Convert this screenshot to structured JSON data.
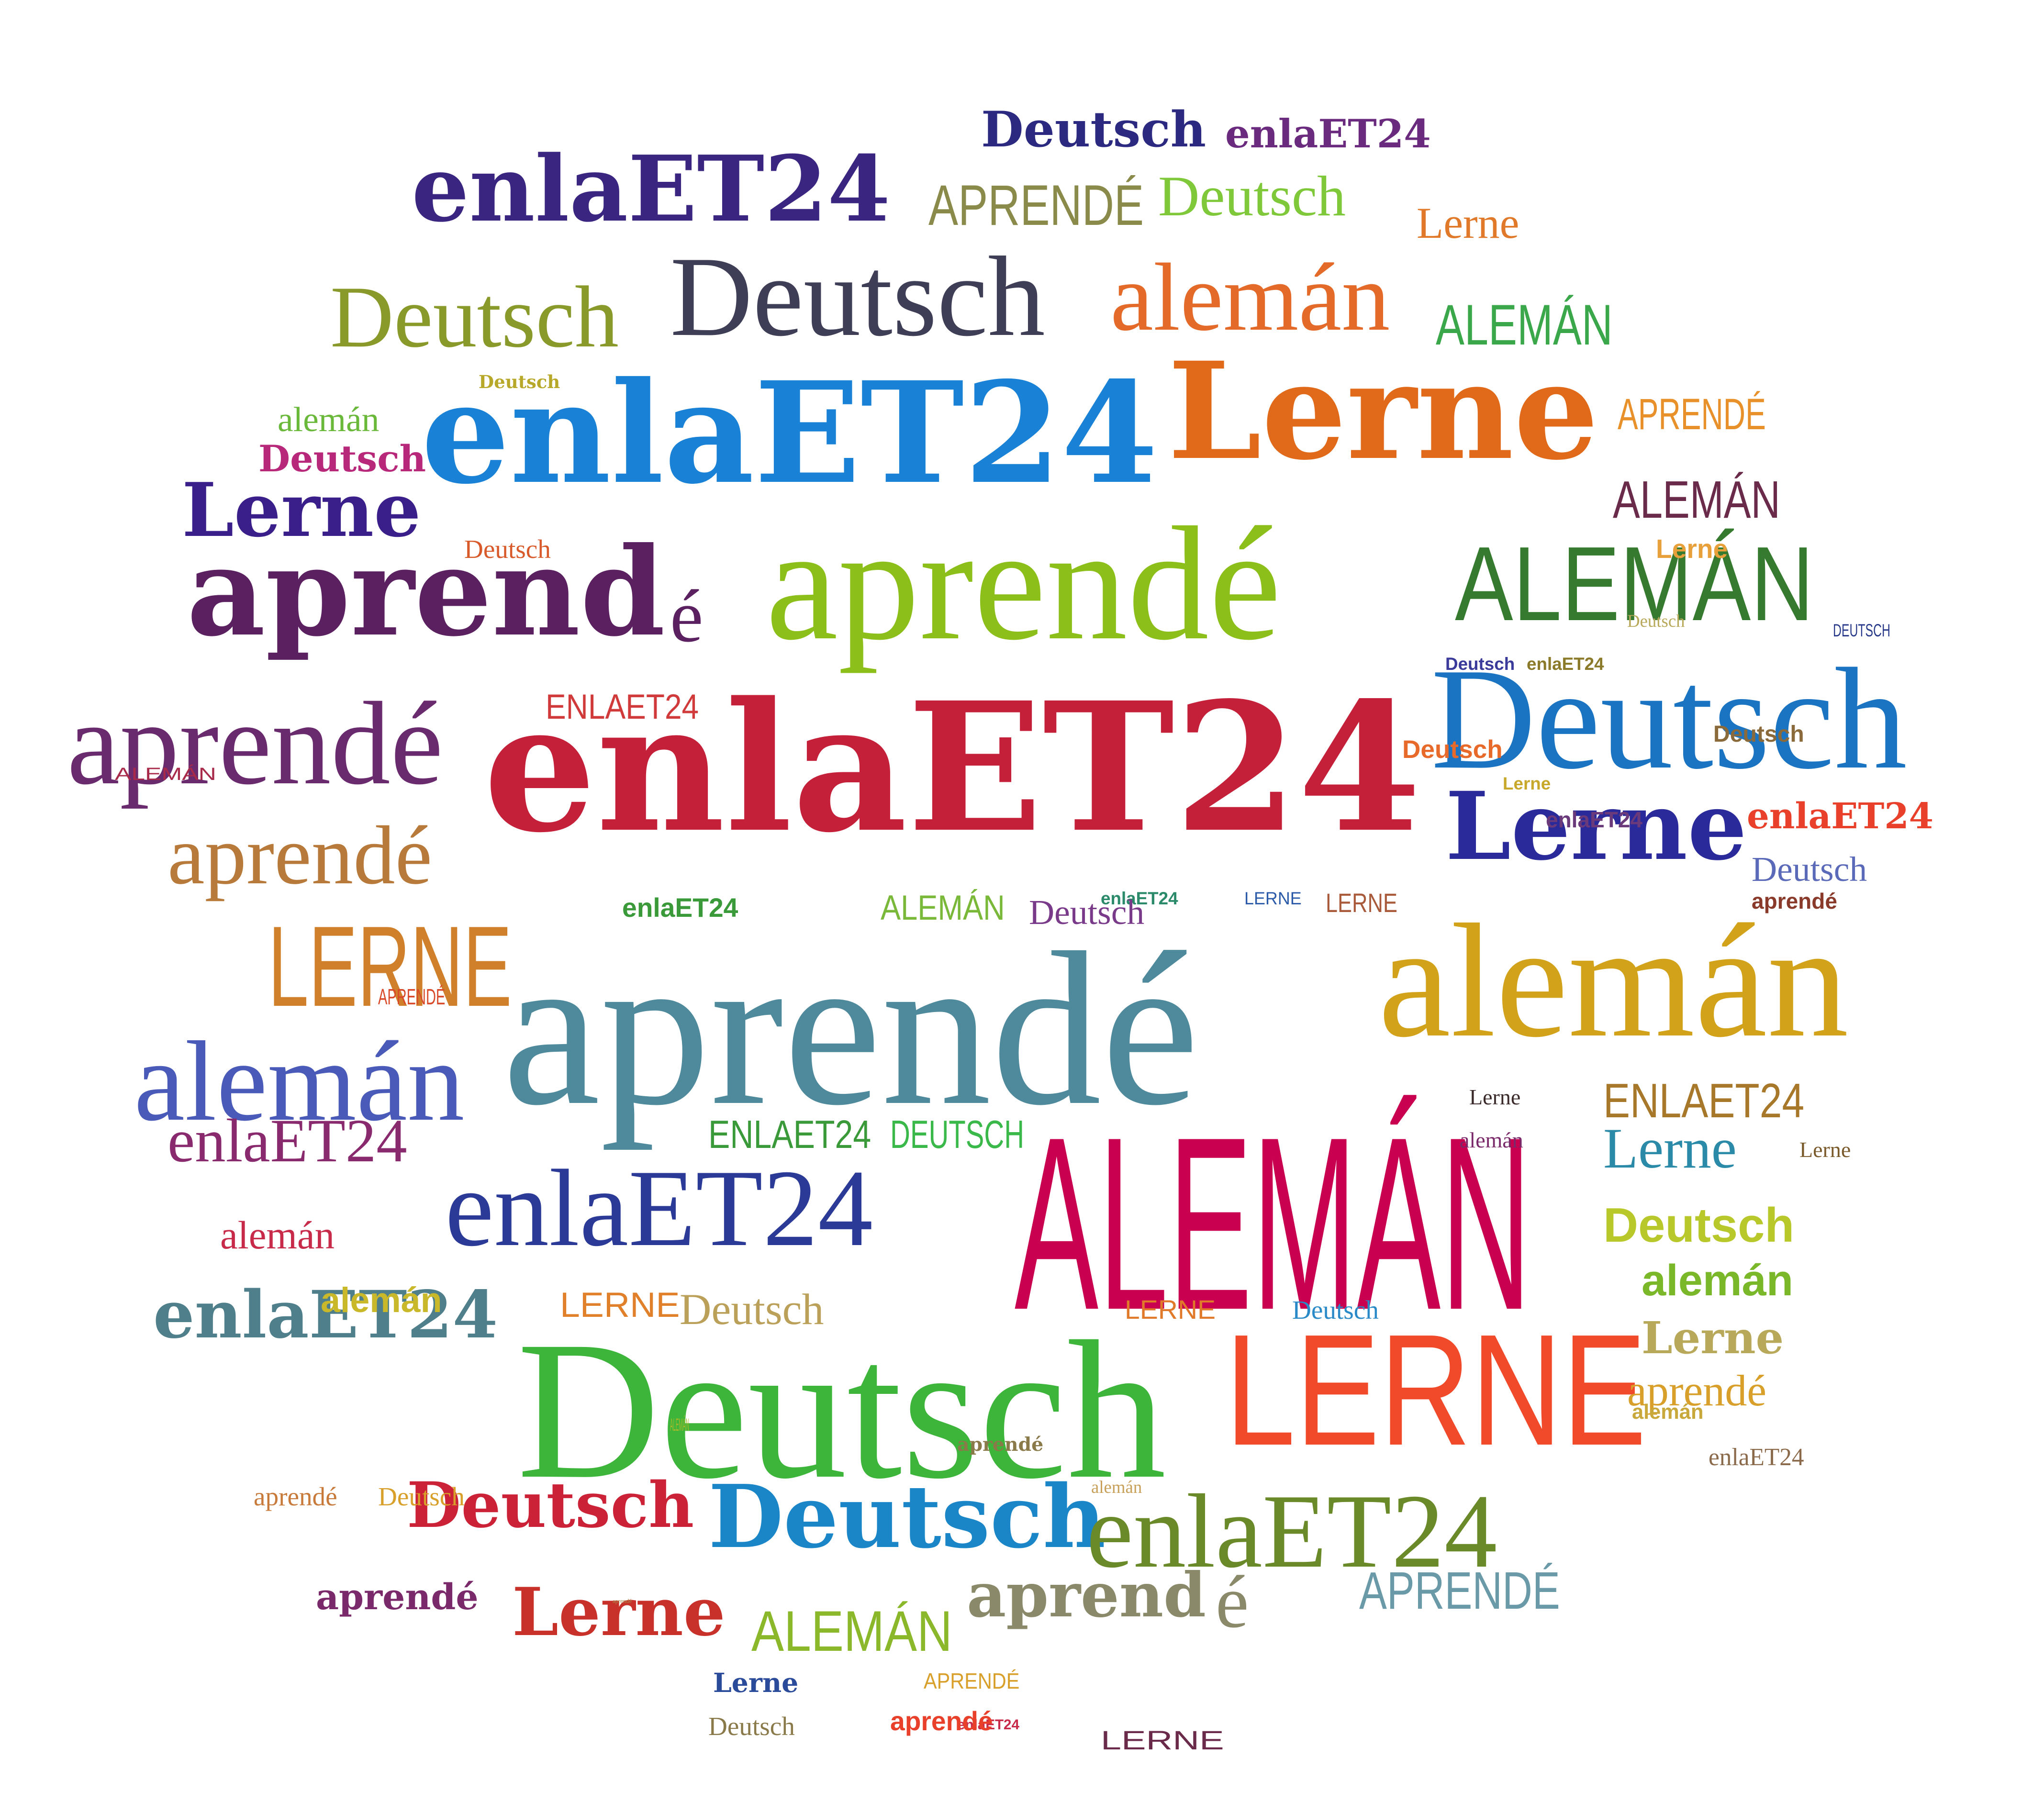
{
  "cloud": {
    "aria_label": "Lerne Deutsch aprendé alemán enlaET24",
    "words": [
      {
        "text": "enlaET24",
        "color": "#c5203a",
        "style": "slab"
      },
      {
        "text": "aprendé",
        "color": "#4f8a9c",
        "style": "serif"
      },
      {
        "text": "ALEMÁN",
        "color": "#c8004f",
        "style": "cond"
      },
      {
        "text": "Deutsch",
        "color": "#3cb53a",
        "style": "serif"
      },
      {
        "text": "aprendé",
        "color": "#8dbf1b",
        "style": "serif"
      },
      {
        "text": "Lerne",
        "color": "#e06a1a",
        "style": "slab"
      },
      {
        "text": "enlaET24",
        "color": "#1a82d6",
        "style": "slab"
      },
      {
        "text": "Deutsch",
        "color": "#3e3e56",
        "style": "serif"
      },
      {
        "text": "LERNE",
        "color": "#f04a2b",
        "style": "cond"
      },
      {
        "text": "alemán",
        "color": "#d1a21a",
        "style": "serif"
      },
      {
        "text": "Deutsch",
        "color": "#1a74c2",
        "style": "serif"
      },
      {
        "text": "aprend",
        "color": "#5a2060",
        "style": "slab"
      },
      {
        "text": "é",
        "color": "#5a2060",
        "style": "serif"
      },
      {
        "text": "enlaET24",
        "color": "#3a2680",
        "style": "slab"
      },
      {
        "text": "enlaET24",
        "color": "#2a3a96",
        "style": "serif"
      },
      {
        "text": "ALEMÁN",
        "color": "#357a2e",
        "style": "cond"
      },
      {
        "text": "alemán",
        "color": "#e46a2a",
        "style": "serif"
      },
      {
        "text": "Deutsch",
        "color": "#8a9a2a",
        "style": "serif"
      },
      {
        "text": "aprendé",
        "color": "#6a2a6e",
        "style": "serif"
      },
      {
        "text": "Lerne",
        "color": "#3a1f8a",
        "style": "slab"
      },
      {
        "text": "Lerne",
        "color": "#2a2a9a",
        "style": "slab"
      },
      {
        "text": "alemán",
        "color": "#4a5ab8",
        "style": "serif"
      },
      {
        "text": "aprendé",
        "color": "#b87a3a",
        "style": "serif"
      },
      {
        "text": "LERNE",
        "color": "#d0802a",
        "style": "cond"
      },
      {
        "text": "Deutsch",
        "color": "#1a86c8",
        "style": "slab"
      },
      {
        "text": "enlaET24",
        "color": "#6a8a2a",
        "style": "serif"
      },
      {
        "text": "aprend",
        "color": "#8a8a6a",
        "style": "slab"
      },
      {
        "text": "é",
        "color": "#8a8a6a",
        "style": "serif"
      },
      {
        "text": "Deutsch",
        "color": "#cc2238",
        "style": "slab"
      },
      {
        "text": "enlaET24",
        "color": "#4e7f8a",
        "style": "slab"
      },
      {
        "text": "enlaET24",
        "color": "#8a2a6e",
        "style": "serif"
      },
      {
        "text": "APRENDÉ",
        "color": "#8a8a4a",
        "style": "cond"
      },
      {
        "text": "Deutsch",
        "color": "#7ec83a",
        "style": "serif"
      },
      {
        "text": "Deutsch",
        "color": "#2c2a80",
        "style": "slab"
      },
      {
        "text": "ALEMÁN",
        "color": "#8ab82a",
        "style": "cond"
      },
      {
        "text": "enlaET24",
        "color": "#6a2a7e",
        "style": "slab"
      },
      {
        "text": "Lerne",
        "color": "#c8302a",
        "style": "slab"
      },
      {
        "text": "ALEMÁN",
        "color": "#3aa84a",
        "style": "cond"
      },
      {
        "text": "APRENDÉ",
        "color": "#6a9aa8",
        "style": "cond"
      },
      {
        "text": "ENLAET24",
        "color": "#a8782a",
        "style": "cond"
      },
      {
        "text": "Lerne",
        "color": "#2a8aa8",
        "style": "serif"
      },
      {
        "text": "Deutsch",
        "color": "#b8c82a",
        "style": "bold"
      },
      {
        "text": "alemán",
        "color": "#7ab82a",
        "style": "bold"
      },
      {
        "text": "Lerne",
        "color": "#b8a85a",
        "style": "slab"
      },
      {
        "text": "aprendé",
        "color": "#d8a02a",
        "style": "serif"
      },
      {
        "text": "Lerne",
        "color": "#e07a2a",
        "style": "serif"
      },
      {
        "text": "alemán",
        "color": "#c8a05a",
        "style": "serif"
      },
      {
        "text": "ALEMÁN",
        "color": "#6a2a4a",
        "style": "cond"
      },
      {
        "text": "ALEMÁN",
        "color": "#a8b82a",
        "style": "cond"
      },
      {
        "text": "APRENDÉ",
        "color": "#e8902a",
        "style": "cond"
      },
      {
        "text": "enlaET24",
        "color": "#e8402a",
        "style": "slab"
      },
      {
        "text": "Deutsch",
        "color": "#5a6ab8",
        "style": "serif"
      },
      {
        "text": "aprendé",
        "color": "#8a7a4a",
        "style": "slab"
      },
      {
        "text": "aprendé",
        "color": "#aa8a4a",
        "style": "serif"
      },
      {
        "text": "ENLAET24",
        "color": "#d03a3a",
        "style": "cond"
      },
      {
        "text": "Deutsch",
        "color": "#b8287a",
        "style": "slab"
      },
      {
        "text": "alemán",
        "color": "#6ab83a",
        "style": "serif"
      },
      {
        "text": "Deutsch",
        "color": "#b8a82a",
        "style": "slab"
      },
      {
        "text": "Deutsch",
        "color": "#d85a2a",
        "style": "serif"
      },
      {
        "text": "LERNE",
        "color": "#e0802a",
        "style": "cond"
      },
      {
        "text": "Deutsch",
        "color": "#bba05a",
        "style": "serif"
      },
      {
        "text": "ENLAET24",
        "color": "#3a9a3a",
        "style": "cond"
      },
      {
        "text": "DEUTSCH",
        "color": "#3ab84a",
        "style": "cond"
      },
      {
        "text": "alemán",
        "color": "#c82a4a",
        "style": "serif"
      },
      {
        "text": "alemán",
        "color": "#c8b82a",
        "style": "bold"
      },
      {
        "text": "aprendé",
        "color": "#7a2a6a",
        "style": "slab"
      },
      {
        "text": "enlaET24",
        "color": "#2a8a6a",
        "style": "bold"
      },
      {
        "text": "Deutsch",
        "color": "#7a3a8a",
        "style": "serif"
      },
      {
        "text": "ALEMÁN",
        "color": "#7ab83a",
        "style": "cond"
      },
      {
        "text": "enlaET24",
        "color": "#3a9a3a",
        "style": "bold"
      },
      {
        "text": "LERNE",
        "color": "#2a5aa8",
        "style": "cond"
      },
      {
        "text": "LERNE",
        "color": "#a85a3a",
        "style": "cond"
      },
      {
        "text": "Deutsch",
        "color": "#8a6a3a",
        "style": "bold"
      },
      {
        "text": "aprendé",
        "color": "#8a3a2a",
        "style": "bold"
      },
      {
        "text": "Lerne",
        "color": "#3a2a2a",
        "style": "serif"
      },
      {
        "text": "alemán",
        "color": "#7a2a6a",
        "style": "serif"
      },
      {
        "text": "Lerne",
        "color": "#7a5a2a",
        "style": "serif"
      },
      {
        "text": "Deutsch",
        "color": "#2a8ac8",
        "style": "serif"
      },
      {
        "text": "LERNE",
        "color": "#e07a2a",
        "style": "cond"
      },
      {
        "text": "APRENDÉ",
        "color": "#d84a2a",
        "style": "cond"
      },
      {
        "text": "Deutsch",
        "color": "#e86a2a",
        "style": "bold"
      },
      {
        "text": "Lerne",
        "color": "#e8a03a",
        "style": "bold"
      },
      {
        "text": "enlaET24",
        "color": "#8a6a4a",
        "style": "serif"
      },
      {
        "text": "Deutsch",
        "color": "#8a7a4a",
        "style": "serif"
      },
      {
        "text": "APRENDÉ",
        "color": "#d8a02a",
        "style": "cond"
      },
      {
        "text": "LERNE",
        "color": "#6a2a4a",
        "style": "cond"
      },
      {
        "text": "enlaET24",
        "color": "#c82a4a",
        "style": "bold"
      },
      {
        "text": "aprendé",
        "color": "#e8402a",
        "style": "bold"
      },
      {
        "text": "Lerne",
        "color": "#2a4a9a",
        "style": "slab"
      },
      {
        "text": "ALEMÁN",
        "color": "#a82a4a",
        "style": "cond"
      },
      {
        "text": "aprendé",
        "color": "#c87a3a",
        "style": "serif"
      },
      {
        "text": "Deutsch",
        "color": "#d8a02a",
        "style": "serif"
      },
      {
        "text": "alemán",
        "color": "#c8a83a",
        "style": "bold"
      },
      {
        "text": "enlaET24",
        "color": "#6a3a7a",
        "style": "bold"
      },
      {
        "text": "Deutsch",
        "color": "#3a3a9a",
        "style": "bold"
      },
      {
        "text": "DEUTSCH",
        "color": "#2a3a8a",
        "style": "cond"
      },
      {
        "text": "enlaET24",
        "color": "#8a7a2a",
        "style": "bold"
      },
      {
        "text": "Deutsch",
        "color": "#b8a85a",
        "style": "serif"
      },
      {
        "text": "Lerne",
        "color": "#c8a82a",
        "style": "bold"
      }
    ]
  }
}
